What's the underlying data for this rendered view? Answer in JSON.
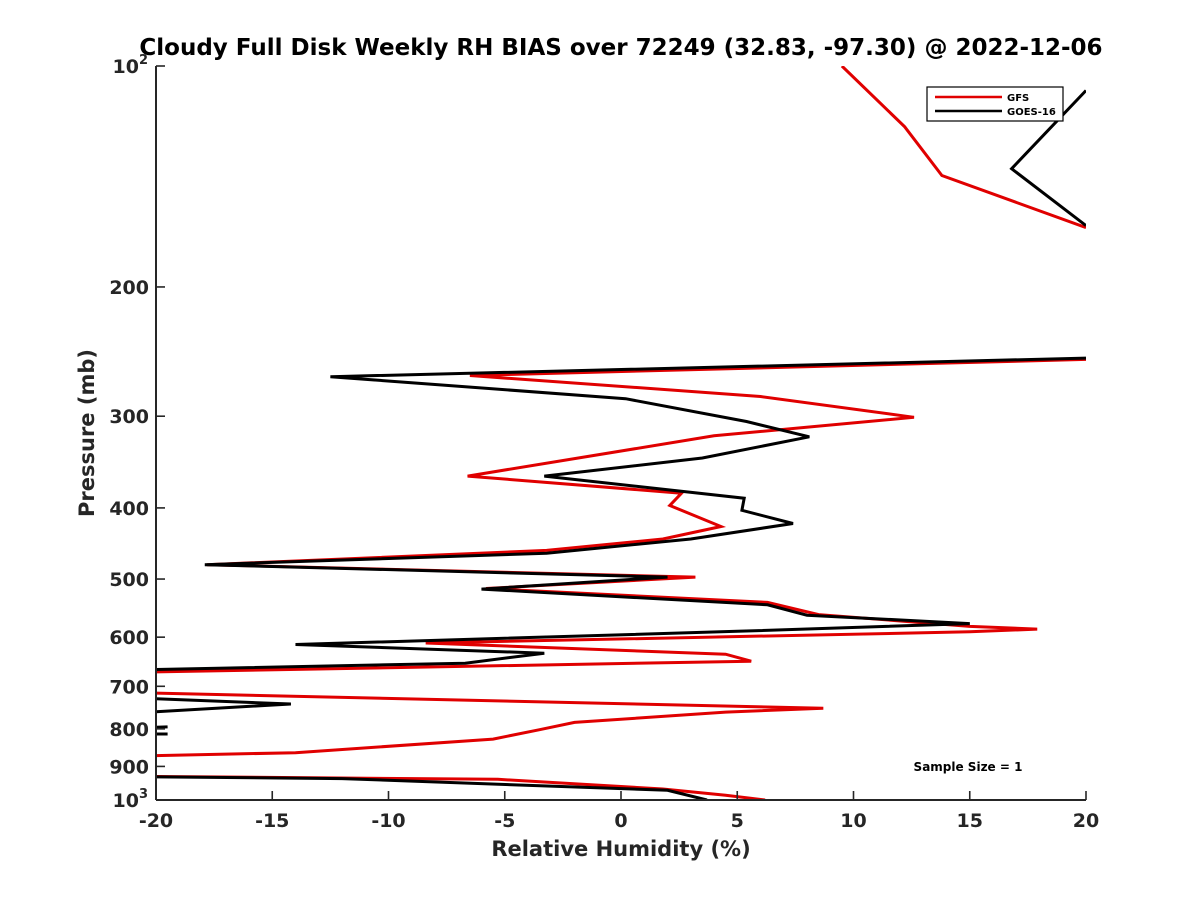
{
  "chart_data": {
    "type": "line",
    "title": "Cloudy Full Disk Weekly RH BIAS over 72249 (32.83, -97.30) @ 2022-12-06",
    "xlabel": "Relative Humidity (%)",
    "ylabel": "Pressure (mb)",
    "xlim": [
      -20,
      20
    ],
    "ylim": [
      100,
      1000
    ],
    "yscale": "log",
    "y_reversed": true,
    "x_ticks": [
      -20,
      -15,
      -10,
      -5,
      0,
      5,
      10,
      15,
      20
    ],
    "x_tick_labels": [
      "-20",
      "-15",
      "-10",
      "-5",
      "0",
      "5",
      "10",
      "15",
      "20"
    ],
    "y_ticks": [
      100,
      200,
      300,
      400,
      500,
      600,
      700,
      800,
      900,
      1000
    ],
    "y_tick_labels": [
      {
        "base": "10",
        "exp": "2"
      },
      {
        "base": "200",
        "exp": ""
      },
      {
        "base": "300",
        "exp": ""
      },
      {
        "base": "400",
        "exp": ""
      },
      {
        "base": "500",
        "exp": ""
      },
      {
        "base": "600",
        "exp": ""
      },
      {
        "base": "700",
        "exp": ""
      },
      {
        "base": "800",
        "exp": ""
      },
      {
        "base": "900",
        "exp": ""
      },
      {
        "base": "10",
        "exp": "3"
      }
    ],
    "grid": false,
    "legend_position": "top-right",
    "annotation": "Sample Size = 1",
    "series": [
      {
        "name": "GFS",
        "color": "#e00000",
        "x": [
          9.5,
          12.2,
          13.8,
          20.0,
          null,
          20.0,
          -6.5,
          6.0,
          12.6,
          4.0,
          -6.6,
          2.6,
          2.1,
          4.3,
          1.8,
          -3.2,
          -17.8,
          3.2,
          -5.8,
          6.3,
          8.5,
          15.0,
          17.9,
          15.0,
          -8.4,
          4.5,
          5.6,
          -20.0,
          null,
          -20.0,
          8.7,
          4.5,
          -2.0,
          -3.5,
          -5.5,
          -14.0,
          -20.0,
          null,
          -20.0,
          -5.3,
          1.8,
          4.5,
          6.2
        ],
        "y": [
          100,
          121,
          141,
          166,
          null,
          251,
          264,
          282,
          301,
          319,
          362,
          382,
          397,
          424,
          441,
          457,
          478,
          497,
          515,
          538,
          559,
          580,
          585,
          590,
          611,
          633,
          647,
          669,
          null,
          715,
          750,
          759,
          784,
          802,
          826,
          862,
          870,
          null,
          929,
          937,
          966,
          985,
          1000
        ]
      },
      {
        "name": "GOES-16",
        "color": "#000000",
        "x": [
          20.0,
          16.8,
          20.0,
          null,
          20.0,
          -12.5,
          0.2,
          5.4,
          8.1,
          3.5,
          -3.3,
          5.3,
          5.2,
          7.4,
          3.0,
          -3.2,
          -17.9,
          2.0,
          -6.0,
          6.3,
          8.0,
          15.0,
          5.0,
          -14.0,
          -3.3,
          -6.7,
          -20.0,
          null,
          -20.0,
          -14.2,
          -20.0,
          null,
          -20.0,
          -19.5,
          null,
          -20.0,
          -19.5,
          null,
          -20.0,
          -12.0,
          2.0,
          3.7
        ],
        "y": [
          108,
          138,
          165,
          null,
          250,
          265,
          284,
          305,
          320,
          342,
          362,
          388,
          403,
          420,
          441,
          461,
          478,
          497,
          516,
          542,
          560,
          575,
          589,
          614,
          631,
          651,
          664,
          null,
          728,
          740,
          758,
          null,
          796,
          795,
          null,
          813,
          813,
          null,
          930,
          935,
          970,
          1000
        ]
      }
    ]
  }
}
